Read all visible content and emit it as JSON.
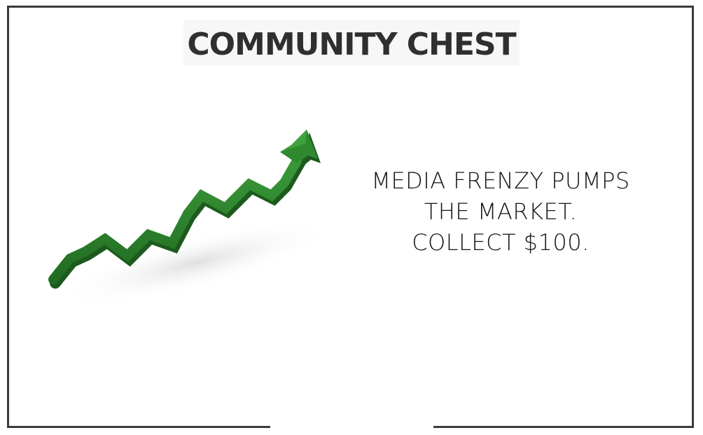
{
  "card": {
    "title": "COMMUNITY CHEST",
    "message_lines": [
      "MEDIA FRENZY PUMPS",
      "THE MARKET.",
      "COLLECT $100."
    ],
    "illustration": "green-rising-arrow-icon",
    "colors": {
      "border": "#3a3a3a",
      "title": "#2f2f2f",
      "arrow": "#2f8a2f"
    }
  }
}
